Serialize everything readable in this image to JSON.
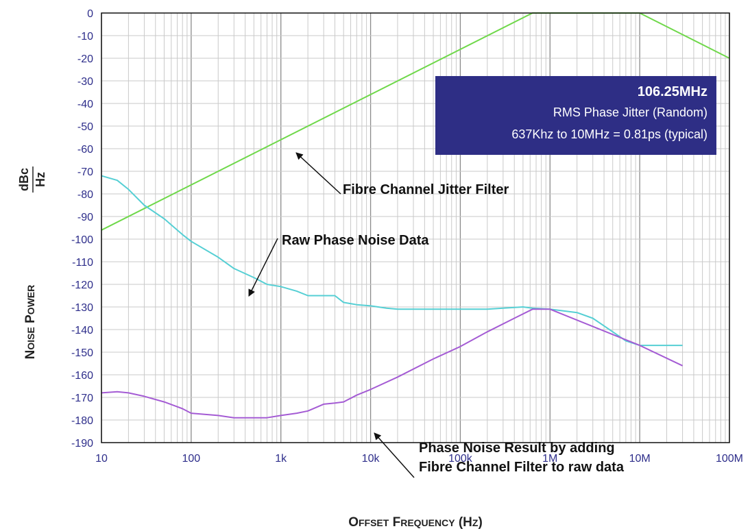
{
  "chart_data": {
    "type": "line",
    "x_scale": "log",
    "xlim": [
      10,
      100000000
    ],
    "ylim": [
      -190,
      0
    ],
    "grid": true,
    "xlabel": "Offset Frequency (Hz)",
    "ylabel_main": "Noise Power",
    "ylabel_unit_num": "dBc",
    "ylabel_unit_den": "Hz",
    "x_tick_labels": [
      "10",
      "100",
      "1k",
      "10k",
      "100k",
      "1M",
      "10M",
      "100M"
    ],
    "x_tick_values": [
      10,
      100,
      1000,
      10000,
      100000,
      1000000,
      10000000,
      100000000
    ],
    "y_ticks": [
      0,
      -10,
      -20,
      -30,
      -40,
      -50,
      -60,
      -70,
      -80,
      -90,
      -100,
      -110,
      -120,
      -130,
      -140,
      -150,
      -160,
      -170,
      -180,
      -190
    ],
    "series": [
      {
        "color": "#6fd84a",
        "x": [
          10,
          637000,
          10000000,
          100000000
        ],
        "y": [
          -96,
          0,
          0,
          -20
        ]
      },
      {
        "color": "#55cfd4",
        "x": [
          10,
          15,
          20,
          30,
          50,
          80,
          100,
          200,
          300,
          500,
          700,
          1000,
          1500,
          2000,
          3000,
          4000,
          5000,
          7000,
          10000,
          15000,
          20000,
          30000,
          50000,
          100000,
          200000,
          300000,
          500000,
          637000,
          1000000,
          2000000,
          3000000,
          5000000,
          7000000,
          10000000,
          30000000
        ],
        "y": [
          -72,
          -74,
          -78,
          -85,
          -91,
          -98,
          -101,
          -108,
          -113,
          -117,
          -120,
          -121,
          -123,
          -125,
          -125,
          -125,
          -128,
          -129,
          -129.5,
          -130.5,
          -131,
          -131,
          -131,
          -131,
          -131,
          -130.5,
          -130,
          -130.5,
          -131,
          -132.5,
          -135,
          -141,
          -145,
          -147,
          -147
        ]
      },
      {
        "color": "#a45bd4",
        "x": [
          10,
          15,
          20,
          30,
          50,
          80,
          100,
          200,
          300,
          500,
          700,
          1000,
          1500,
          2000,
          3000,
          4000,
          5000,
          7000,
          10000,
          20000,
          50000,
          100000,
          200000,
          400000,
          637000,
          1000000,
          10000000,
          30000000
        ],
        "y": [
          -168,
          -167.5,
          -168,
          -169.5,
          -172,
          -175,
          -177,
          -178,
          -179,
          -179,
          -179,
          -178,
          -177,
          -176,
          -173,
          -172.5,
          -172,
          -169,
          -166.5,
          -161,
          -153,
          -147.5,
          -141,
          -135,
          -131,
          -131,
          -147,
          -156
        ]
      }
    ],
    "annotations": [
      {
        "lines": [
          "Fibre Channel Jitter Filter"
        ]
      },
      {
        "lines": [
          "Raw Phase Noise Data"
        ]
      },
      {
        "lines": [
          "Phase Noise Result by adding",
          "Fibre Channel Filter to raw data"
        ]
      }
    ],
    "info_box": {
      "title": "106.25MHz",
      "line1": "RMS Phase Jitter  (Random)",
      "line2": "637Khz to 10MHz = 0.81ps (typical)",
      "bg": "#2e2e85"
    }
  }
}
